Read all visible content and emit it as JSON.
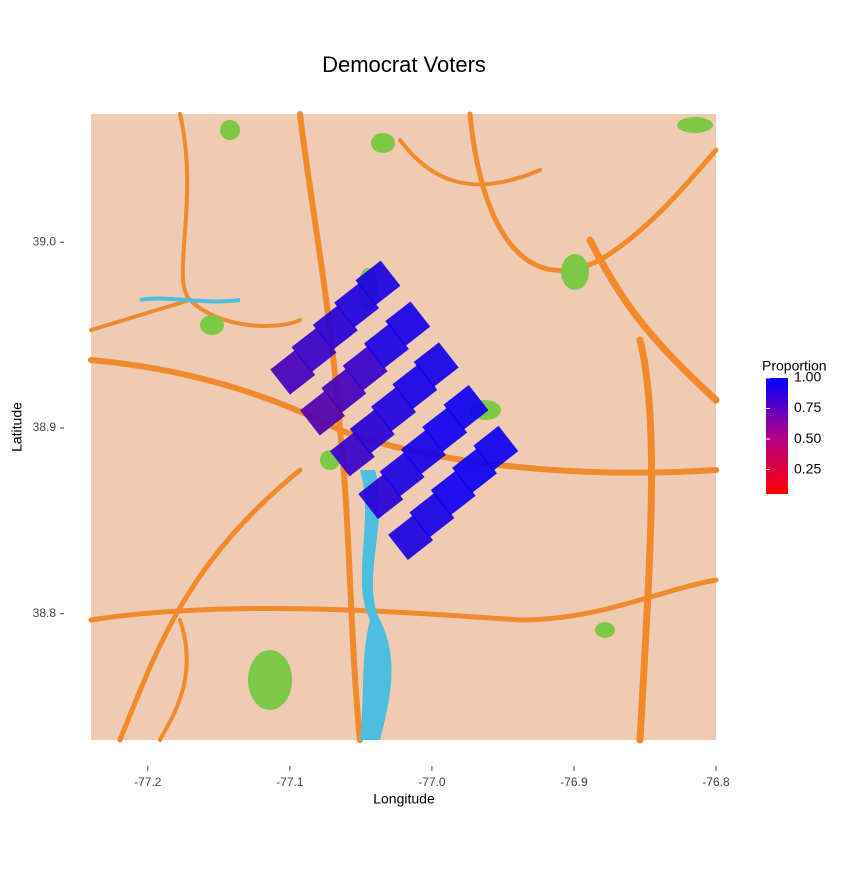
{
  "chart_data": {
    "type": "map-points",
    "title": "Democrat Voters",
    "x_label": "Longitude",
    "y_label": "Latitude",
    "xlim": [
      -77.24,
      -76.8
    ],
    "ylim": [
      38.732,
      39.069
    ],
    "xticks": [
      -77.2,
      -77.1,
      {
        "value": -77,
        "label": "-77.0"
      },
      -76.9,
      -76.8
    ],
    "yticks": [
      38.8,
      38.9,
      {
        "value": 39,
        "label": "39.0"
      }
    ],
    "legend": {
      "title": "Proportion",
      "color_low": "#ff0000",
      "color_high": "#0000ff",
      "lim": [
        0.05,
        1
      ],
      "ticks": [
        0.25,
        {
          "value": 0.5,
          "label": "0.50"
        },
        0.75,
        {
          "value": 1,
          "label": "1.00"
        }
      ]
    },
    "x": [
      -77.098,
      -77.077,
      -77.056,
      -77.036,
      -77.015,
      -77.083,
      -77.062,
      -77.042,
      -77.021,
      -77.0,
      -77.068,
      -77.047,
      -77.027,
      -77.006,
      -76.985,
      -77.053,
      -77.032,
      -77.012,
      -76.991,
      -76.97,
      -77.038,
      -77.017,
      -76.997,
      -76.976,
      -76.955
    ],
    "y": [
      38.93,
      38.908,
      38.886,
      38.863,
      38.841,
      38.942,
      38.92,
      38.898,
      38.875,
      38.853,
      38.954,
      38.932,
      38.91,
      38.887,
      38.865,
      38.966,
      38.944,
      38.922,
      38.899,
      38.877,
      38.978,
      38.956,
      38.934,
      38.911,
      38.889
    ],
    "values": [
      0.75,
      0.7,
      0.8,
      0.85,
      0.9,
      0.8,
      0.75,
      0.85,
      0.9,
      0.92,
      0.85,
      0.8,
      0.88,
      0.93,
      0.95,
      0.88,
      0.9,
      0.92,
      0.95,
      0.96,
      0.9,
      0.92,
      0.93,
      0.95,
      0.95
    ]
  }
}
